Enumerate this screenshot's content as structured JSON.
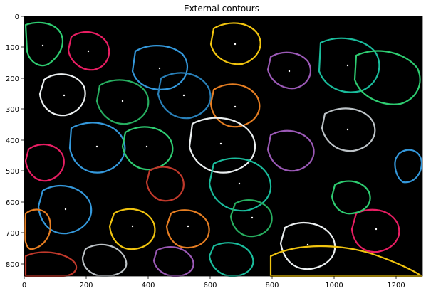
{
  "title": "External contours",
  "axes": {
    "x_ticks": [
      "0",
      "200",
      "400",
      "600",
      "800",
      "1000",
      "1200"
    ],
    "y_ticks": [
      "0",
      "100",
      "200",
      "300",
      "400",
      "500",
      "600",
      "700",
      "800"
    ]
  },
  "image": {
    "background": "#000000",
    "contour_colors": [
      "#2ecc71",
      "#e91e63",
      "#3498db",
      "#f1c40f",
      "#9b59b6",
      "#e67e22",
      "#1abc9c",
      "#ecf0f1",
      "#c0392b",
      "#bdc3c7",
      "#2980b9",
      "#27ae60"
    ]
  }
}
